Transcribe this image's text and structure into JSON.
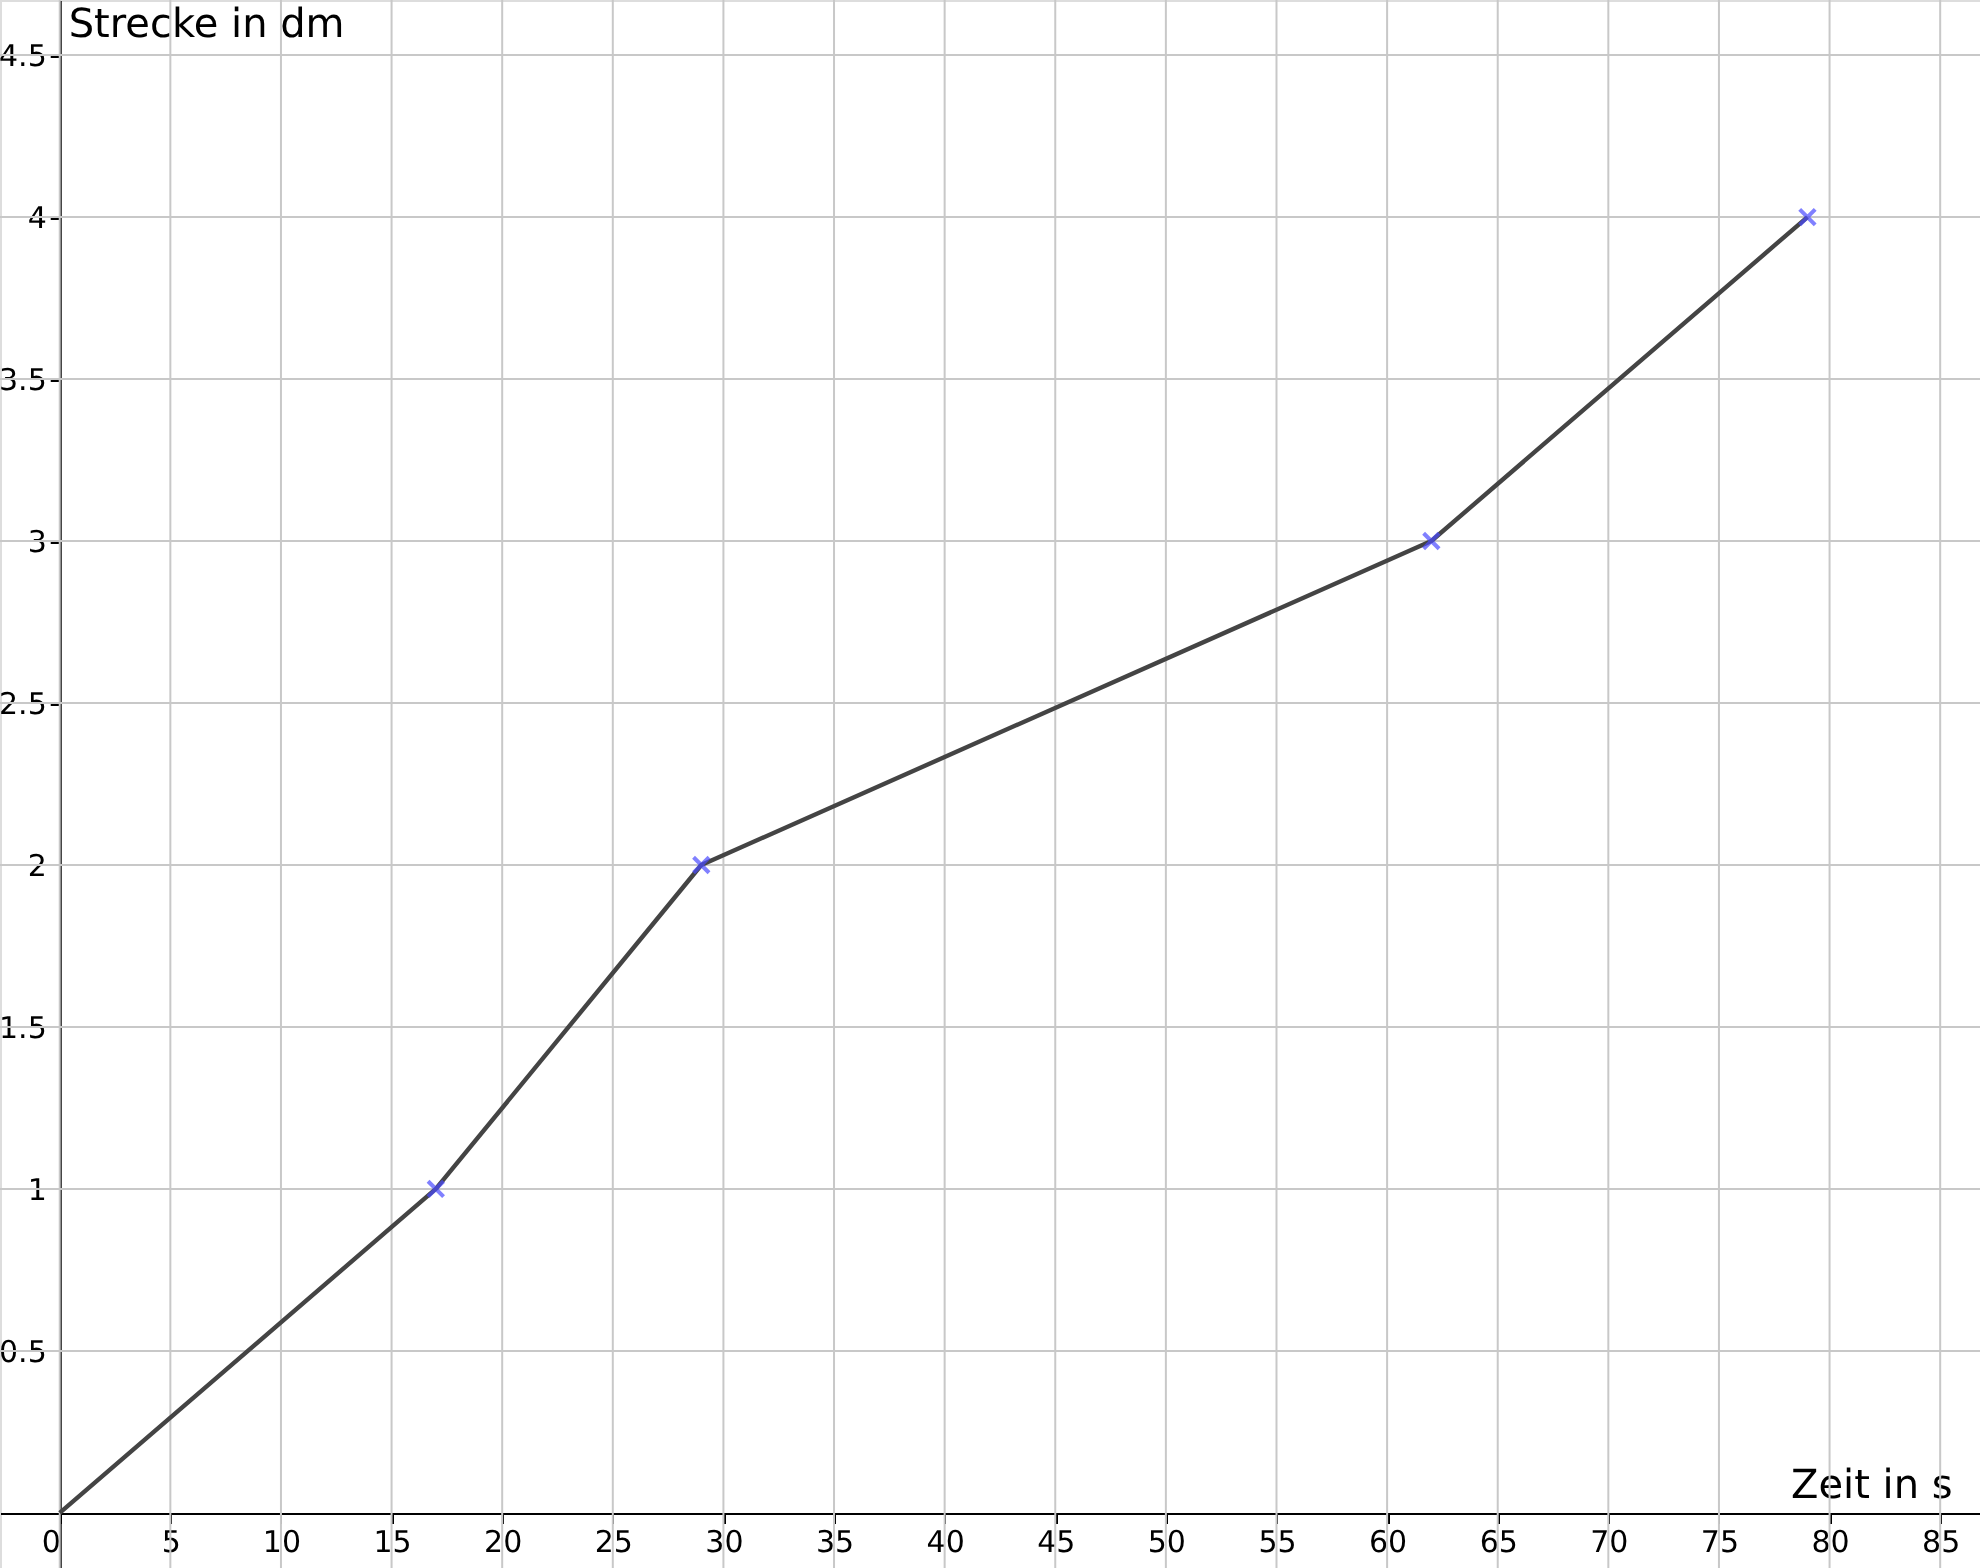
{
  "chart_data": {
    "type": "line",
    "xlabel": "Zeit in s",
    "ylabel": "Strecke in dm",
    "series": [
      {
        "color": "#444444",
        "marker": "none",
        "line_style": "solid",
        "x": [
          0,
          17,
          29,
          62,
          79
        ],
        "values": [
          0,
          1,
          2,
          3,
          4
        ]
      },
      {
        "type": "scatter",
        "color": "#4b4bff",
        "marker": "cross",
        "x": [
          17,
          29,
          62,
          79
        ],
        "values": [
          1,
          2,
          3,
          4
        ]
      }
    ],
    "xlim": [
      -2.7,
      86.8
    ],
    "ylim": [
      -0.17,
      4.67
    ],
    "xticks": [
      0,
      5,
      10,
      15,
      20,
      25,
      30,
      35,
      40,
      45,
      50,
      55,
      60,
      65,
      70,
      75,
      80,
      85
    ],
    "yticks": [
      0.5,
      1,
      1.5,
      2,
      2.5,
      3,
      3.5,
      4,
      4.5
    ],
    "grid": true
  }
}
